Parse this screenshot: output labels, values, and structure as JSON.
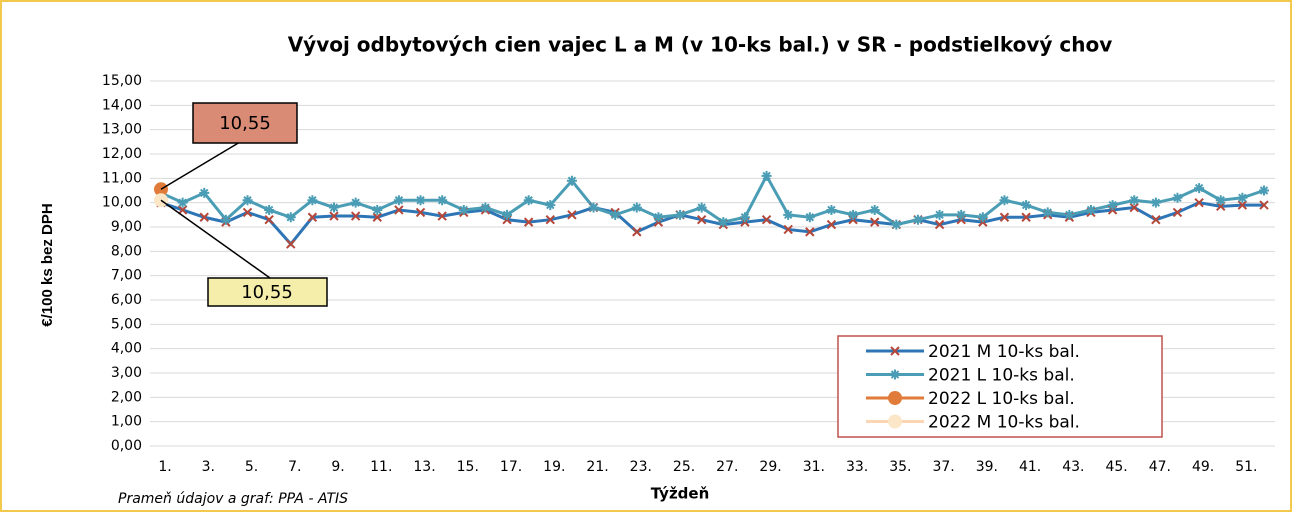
{
  "chart_data": {
    "type": "line",
    "title": "Vývoj odbytových cien vajec L a M (v 10-ks bal.) v SR - podstielkový chov",
    "x_label": "Týždeň",
    "y_label": "€/100 ks bez DPH",
    "source": "Prameň údajov a graf: PPA - ATIS",
    "annotations": [
      "10,55",
      "10,55"
    ],
    "categories": [
      "1.",
      null,
      "3.",
      null,
      "5.",
      null,
      "7.",
      null,
      "9.",
      null,
      "11.",
      null,
      "13.",
      null,
      "15.",
      null,
      "17.",
      null,
      "19.",
      null,
      "21.",
      null,
      "23.",
      null,
      "25.",
      null,
      "27.",
      null,
      "29.",
      null,
      "31.",
      null,
      "33.",
      null,
      "35.",
      null,
      "37.",
      null,
      "39.",
      null,
      "41.",
      null,
      "43.",
      null,
      "45.",
      null,
      "47.",
      null,
      "49.",
      null,
      "51.",
      null
    ],
    "ylim": [
      0,
      15
    ],
    "yticks": [
      {
        "value": 0,
        "label": "0,00"
      },
      {
        "value": 1,
        "label": "1,00"
      },
      {
        "value": 2,
        "label": "2,00"
      },
      {
        "value": 3,
        "label": "3,00"
      },
      {
        "value": 4,
        "label": "4,00"
      },
      {
        "value": 5,
        "label": "5,00"
      },
      {
        "value": 6,
        "label": "6,00"
      },
      {
        "value": 7,
        "label": "7,00"
      },
      {
        "value": 8,
        "label": "8,00"
      },
      {
        "value": 9,
        "label": "9,00"
      },
      {
        "value": 10,
        "label": "10,00"
      },
      {
        "value": 11,
        "label": "11,00"
      },
      {
        "value": 12,
        "label": "12,00"
      },
      {
        "value": 13,
        "label": "13,00"
      },
      {
        "value": 14,
        "label": "14,00"
      },
      {
        "value": 15,
        "label": "15,00"
      }
    ],
    "grid": true,
    "legend": "lower right",
    "series": [
      {
        "name": "2021 M 10-ks bal.",
        "color": "#2e75b6",
        "marker": "x",
        "marker_color": "#b5473a",
        "values": [
          10.0,
          9.7,
          9.4,
          9.2,
          9.6,
          9.3,
          8.3,
          9.4,
          9.45,
          9.45,
          9.4,
          9.7,
          9.6,
          9.45,
          9.6,
          9.7,
          9.3,
          9.2,
          9.3,
          9.5,
          9.8,
          9.6,
          8.8,
          9.2,
          9.5,
          9.3,
          9.1,
          9.2,
          9.3,
          8.9,
          8.8,
          9.1,
          9.3,
          9.2,
          9.1,
          9.3,
          9.1,
          9.3,
          9.2,
          9.4,
          9.4,
          9.5,
          9.4,
          9.6,
          9.7,
          9.8,
          9.3,
          9.6,
          10.0,
          9.85,
          9.9,
          9.9
        ]
      },
      {
        "name": "2021 L 10-ks bal.",
        "color": "#4a9db5",
        "marker": "star",
        "marker_color": "#4a9db5",
        "values": [
          10.4,
          10.0,
          10.4,
          9.3,
          10.1,
          9.7,
          9.4,
          10.1,
          9.8,
          10.0,
          9.7,
          10.1,
          10.1,
          10.1,
          9.7,
          9.8,
          9.5,
          10.1,
          9.9,
          10.9,
          9.8,
          9.5,
          9.8,
          9.4,
          9.5,
          9.8,
          9.2,
          9.4,
          11.1,
          9.5,
          9.4,
          9.7,
          9.5,
          9.7,
          9.1,
          9.3,
          9.5,
          9.5,
          9.4,
          10.1,
          9.9,
          9.6,
          9.5,
          9.7,
          9.9,
          10.1,
          10.0,
          10.2,
          10.6,
          10.1,
          10.2,
          10.5
        ]
      },
      {
        "name": "2022 L 10-ks bal.",
        "color": "#e07b39",
        "marker": "circle",
        "marker_color": "#e07b39",
        "values": [
          10.55,
          null,
          null,
          null,
          null,
          null,
          null,
          null,
          null,
          null,
          null,
          null,
          null,
          null,
          null,
          null,
          null,
          null,
          null,
          null,
          null,
          null,
          null,
          null,
          null,
          null,
          null,
          null,
          null,
          null,
          null,
          null,
          null,
          null,
          null,
          null,
          null,
          null,
          null,
          null,
          null,
          null,
          null,
          null,
          null,
          null,
          null,
          null,
          null,
          null,
          null,
          null
        ]
      },
      {
        "name": "2022 M 10-ks bal.",
        "color": "#fcd5b4",
        "marker": "circle",
        "marker_color": "#fbe6c8",
        "values": [
          10.1,
          null,
          null,
          null,
          null,
          null,
          null,
          null,
          null,
          null,
          null,
          null,
          null,
          null,
          null,
          null,
          null,
          null,
          null,
          null,
          null,
          null,
          null,
          null,
          null,
          null,
          null,
          null,
          null,
          null,
          null,
          null,
          null,
          null,
          null,
          null,
          null,
          null,
          null,
          null,
          null,
          null,
          null,
          null,
          null,
          null,
          null,
          null,
          null,
          null,
          null,
          null
        ]
      }
    ]
  }
}
